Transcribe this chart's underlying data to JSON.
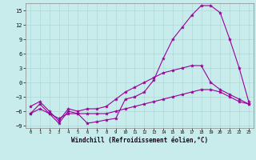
{
  "xlabel": "Windchill (Refroidissement éolien,°C)",
  "xlim": [
    -0.5,
    23.5
  ],
  "ylim": [
    -9.5,
    16.5
  ],
  "yticks": [
    -9,
    -6,
    -3,
    0,
    3,
    6,
    9,
    12,
    15
  ],
  "xticks": [
    0,
    1,
    2,
    3,
    4,
    5,
    6,
    7,
    8,
    9,
    10,
    11,
    12,
    13,
    14,
    15,
    16,
    17,
    18,
    19,
    20,
    21,
    22,
    23
  ],
  "background_color": "#c8ecec",
  "grid_color": "#b0d8d8",
  "line_color": "#990099",
  "curve1_x": [
    0,
    1,
    2,
    3,
    4,
    5,
    6,
    7,
    8,
    9,
    10,
    11,
    12,
    13,
    14,
    15,
    16,
    17,
    18,
    19,
    20,
    21,
    22,
    23
  ],
  "curve1_y": [
    -6.5,
    -4.5,
    -6.5,
    -8.5,
    -6.0,
    -6.5,
    -8.5,
    -8.2,
    -7.8,
    -7.5,
    -3.5,
    -3.0,
    -2.0,
    0.5,
    5.0,
    9.0,
    11.5,
    14.0,
    16.0,
    16.0,
    14.5,
    9.0,
    3.0,
    -4.0
  ],
  "curve2_x": [
    0,
    1,
    2,
    3,
    4,
    5,
    6,
    7,
    8,
    9,
    10,
    11,
    12,
    13,
    14,
    15,
    16,
    17,
    18,
    19,
    20,
    21,
    22,
    23
  ],
  "curve2_y": [
    -5.0,
    -4.0,
    -6.0,
    -8.0,
    -5.5,
    -6.0,
    -5.5,
    -5.5,
    -5.0,
    -3.5,
    -2.0,
    -1.0,
    0.0,
    1.0,
    2.0,
    2.5,
    3.0,
    3.5,
    3.5,
    0.0,
    -1.5,
    -2.5,
    -3.5,
    -4.5
  ],
  "curve3_x": [
    0,
    1,
    2,
    3,
    4,
    5,
    6,
    7,
    8,
    9,
    10,
    11,
    12,
    13,
    14,
    15,
    16,
    17,
    18,
    19,
    20,
    21,
    22,
    23
  ],
  "curve3_y": [
    -6.5,
    -5.5,
    -6.5,
    -7.5,
    -6.5,
    -6.5,
    -6.5,
    -6.5,
    -6.5,
    -6.0,
    -5.5,
    -5.0,
    -4.5,
    -4.0,
    -3.5,
    -3.0,
    -2.5,
    -2.0,
    -1.5,
    -1.5,
    -2.0,
    -3.0,
    -4.0,
    -4.5
  ]
}
